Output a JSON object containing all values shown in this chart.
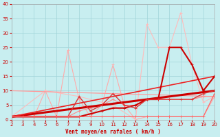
{
  "xlabel": "Vent moyen/en rafales ( km/h )",
  "xlim": [
    2,
    20
  ],
  "ylim": [
    0,
    40
  ],
  "xticks": [
    2,
    3,
    4,
    5,
    6,
    7,
    8,
    9,
    10,
    11,
    12,
    13,
    14,
    15,
    16,
    17,
    18,
    19,
    20
  ],
  "yticks": [
    0,
    5,
    10,
    15,
    20,
    25,
    30,
    35,
    40
  ],
  "background_color": "#c8eef0",
  "grid_color": "#a0d4d8",
  "series": [
    {
      "x": [
        2,
        4,
        5,
        6,
        7,
        8,
        9,
        10,
        11,
        12,
        13,
        14,
        15,
        16,
        17,
        18,
        19,
        20
      ],
      "y": [
        1,
        1,
        10,
        1,
        24,
        7,
        1,
        5,
        19,
        5,
        0,
        1,
        1,
        1,
        1,
        1,
        1,
        8
      ],
      "color": "#ffaaaa",
      "lw": 0.8
    },
    {
      "x": [
        2,
        5,
        8,
        11,
        13,
        14,
        15,
        16,
        17,
        18,
        19,
        20
      ],
      "y": [
        1,
        10,
        8,
        5,
        0,
        33,
        25,
        25,
        37,
        19,
        6,
        8
      ],
      "color": "#ffbbbb",
      "lw": 0.8
    },
    {
      "x": [
        2,
        3,
        4,
        5,
        6,
        7,
        8,
        9,
        10,
        11,
        12,
        13,
        14,
        15,
        16,
        17,
        18,
        19,
        20
      ],
      "y": [
        1,
        1,
        1,
        1,
        1,
        1,
        3,
        4,
        5,
        7,
        5,
        5,
        7,
        7,
        7,
        7,
        7,
        8,
        8
      ],
      "color": "#ff8888",
      "lw": 0.8
    },
    {
      "x": [
        2,
        20
      ],
      "y": [
        10,
        8
      ],
      "color": "#ff9999",
      "lw": 0.9
    },
    {
      "x": [
        2,
        20
      ],
      "y": [
        1,
        10
      ],
      "color": "#cc0000",
      "lw": 2.2
    },
    {
      "x": [
        2,
        20
      ],
      "y": [
        1,
        15
      ],
      "color": "#ee2222",
      "lw": 1.2
    },
    {
      "comment": "dark red zigzag - flat then rising sharply: 14=7, 15=7, 16=25, 17=25, 18=19, 19=10, 20=15",
      "x": [
        2,
        3,
        4,
        5,
        6,
        7,
        8,
        9,
        10,
        11,
        12,
        13,
        14,
        15,
        16,
        17,
        18,
        19,
        20
      ],
      "y": [
        1,
        1,
        1,
        1,
        1,
        1,
        1,
        2,
        3,
        4,
        4,
        5,
        7,
        7,
        25,
        25,
        19,
        10,
        15
      ],
      "color": "#cc0000",
      "lw": 1.5
    },
    {
      "comment": "dark red flat near 0 with zig-zag: 8=8, 9=3, 10=5, 11=9, 12=5, 13=4, 14=7, 15=7",
      "x": [
        2,
        3,
        4,
        5,
        6,
        7,
        8,
        9,
        10,
        11,
        12,
        13,
        14,
        15,
        16,
        17,
        18,
        19,
        20
      ],
      "y": [
        1,
        1,
        1,
        1,
        1,
        1,
        8,
        3,
        5,
        9,
        5,
        4,
        7,
        7,
        7,
        7,
        7,
        9,
        10
      ],
      "color": "#dd3333",
      "lw": 1.0
    },
    {
      "x": [
        2,
        3,
        4,
        5,
        6,
        7,
        8,
        9,
        10,
        11,
        12,
        13,
        14,
        15,
        16,
        17,
        18,
        19,
        20
      ],
      "y": [
        1,
        1,
        1,
        1,
        1,
        1,
        1,
        1,
        1,
        1,
        1,
        1,
        1,
        1,
        1,
        1,
        1,
        1,
        9
      ],
      "color": "#ff6666",
      "lw": 0.9
    }
  ]
}
